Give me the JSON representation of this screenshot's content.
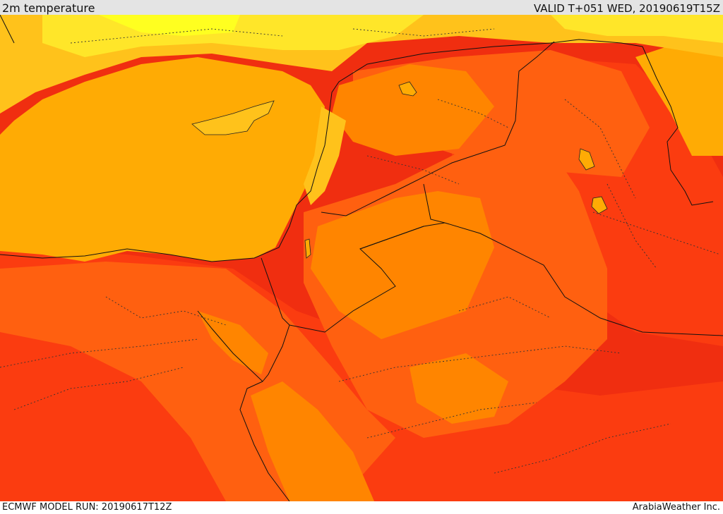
{
  "header": {
    "title": "2m temperature",
    "valid": "VALID T+051 WED, 20190619T15Z"
  },
  "footer": {
    "model_run": "ECMWF MODEL RUN: 20190617T12Z",
    "credit": "ArabiaWeather Inc."
  },
  "palette": {
    "yellow": "#ffff20",
    "light_yellow": "#ffe629",
    "gold": "#ffc21b",
    "amber": "#ffab04",
    "orange": "#ff8500",
    "dark_orange": "#ff6010",
    "red_orange": "#fb3c10",
    "red": "#f02e10"
  }
}
